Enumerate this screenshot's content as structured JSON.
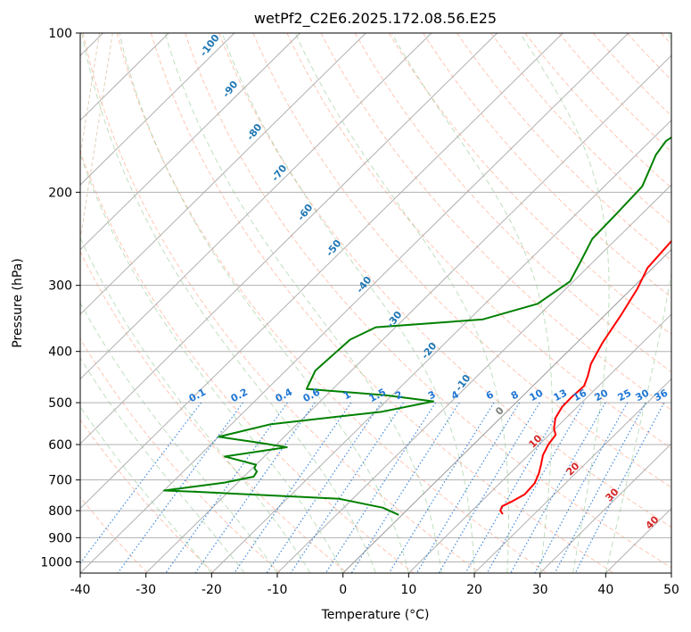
{
  "chart_data": {
    "type": "line",
    "title": "wetPf2_C2E6.2025.172.08.56.E25",
    "xlabel": "Temperature (°C)",
    "ylabel": "Pressure (hPa)",
    "xlim": [
      -40,
      50
    ],
    "ylim": [
      1050,
      100
    ],
    "y_scale": "log",
    "x_ticks": [
      "-40",
      "-30",
      "-20",
      "-10",
      "0",
      "10",
      "20",
      "30",
      "40",
      "50"
    ],
    "y_ticks": [
      {
        "p": 100,
        "label": "100"
      },
      {
        "p": 200,
        "label": "200"
      },
      {
        "p": 300,
        "label": "300"
      },
      {
        "p": 400,
        "label": "400"
      },
      {
        "p": 500,
        "label": "500"
      },
      {
        "p": 600,
        "label": "600"
      },
      {
        "p": 700,
        "label": "700"
      },
      {
        "p": 800,
        "label": "800"
      },
      {
        "p": 900,
        "label": "900"
      },
      {
        "p": 1000,
        "label": "1000"
      }
    ],
    "grid": true,
    "colors": {
      "temperature": "#ff0000",
      "dewpoint": "#008000",
      "isotherm": "#b0b0b0",
      "dry_adiabat": "#ffa080",
      "moist_adiabat": "#80c080",
      "mixing_ratio": "#1f77d4",
      "potential_temp_label": "#1f77b4",
      "moist_label": "#d62728",
      "zero_line": "#808080",
      "tan_curve": "#c8a070"
    },
    "series": [
      {
        "key": "temperature",
        "points": [
          [
            15.2,
            812
          ],
          [
            14.3,
            800
          ],
          [
            13.9,
            785
          ],
          [
            14.6,
            770
          ],
          [
            15.5,
            745
          ],
          [
            15.3,
            710
          ],
          [
            14.4,
            680
          ],
          [
            13.4,
            655
          ],
          [
            12.2,
            628
          ],
          [
            11.4,
            600
          ],
          [
            11.0,
            575
          ],
          [
            9.8,
            560
          ],
          [
            8.4,
            535
          ],
          [
            7.7,
            510
          ],
          [
            7.6,
            490
          ],
          [
            7.8,
            465
          ],
          [
            6.8,
            445
          ],
          [
            5.4,
            422
          ],
          [
            3.9,
            385
          ],
          [
            2.4,
            340
          ],
          [
            0.9,
            305
          ],
          [
            -0.8,
            278
          ],
          [
            -1.3,
            248
          ],
          [
            -1.4,
            226
          ],
          [
            -0.6,
            212
          ],
          [
            0.6,
            200
          ],
          [
            3.5,
            183
          ],
          [
            6.6,
            167
          ],
          [
            9.2,
            150
          ],
          [
            11.3,
            135
          ],
          [
            13.0,
            120
          ],
          [
            14.6,
            110
          ],
          [
            16.0,
            103
          ],
          [
            16.5,
            100
          ]
        ]
      },
      {
        "key": "dewpoint",
        "points": [
          [
            -0.5,
            815
          ],
          [
            -4.0,
            790
          ],
          [
            -12.0,
            760
          ],
          [
            -35.0,
            737
          ],
          [
            -40.0,
            733
          ],
          [
            -37.0,
            724
          ],
          [
            -32.0,
            708
          ],
          [
            -28.5,
            690
          ],
          [
            -28.8,
            675
          ],
          [
            -29.7,
            665
          ],
          [
            -30.0,
            655
          ],
          [
            -36.0,
            632
          ],
          [
            -28.0,
            607
          ],
          [
            -33.0,
            595
          ],
          [
            -40.0,
            580
          ],
          [
            -34.0,
            549
          ],
          [
            -19.0,
            520
          ],
          [
            -12.8,
            497
          ],
          [
            -21.0,
            484
          ],
          [
            -34.0,
            471
          ],
          [
            -35.5,
            435
          ],
          [
            -35.0,
            380
          ],
          [
            -33.0,
            360
          ],
          [
            -18.0,
            348
          ],
          [
            -12.0,
            325
          ],
          [
            -10.5,
            295
          ],
          [
            -12.0,
            270
          ],
          [
            -13.7,
            245
          ],
          [
            -13.9,
            220
          ],
          [
            -14.2,
            195
          ],
          [
            -17.0,
            170
          ],
          [
            -17.6,
            160
          ],
          [
            -16.5,
            150
          ],
          [
            -13.2,
            138
          ],
          [
            -10.3,
            130
          ],
          [
            -8.0,
            125
          ],
          [
            -4.4,
            118
          ],
          [
            -3.2,
            112
          ],
          [
            -5.2,
            107
          ],
          [
            -6.2,
            104
          ],
          [
            -5.0,
            102
          ],
          [
            -3.8,
            100
          ]
        ]
      }
    ],
    "dry_adiabat_labels": [
      "-100",
      "-90",
      "-80",
      "-70",
      "-60",
      "-50",
      "-40",
      "-30",
      "-20",
      "-10"
    ],
    "mixing_ratio_labels": [
      "0.1",
      "0.2",
      "0.4",
      "0.6",
      "1",
      "1.5",
      "2",
      "3",
      "4",
      "6",
      "8",
      "10",
      "13",
      "16",
      "20",
      "25",
      "30",
      "36"
    ],
    "moist_adiabat_labels": [
      "0",
      "10",
      "20",
      "30",
      "40"
    ]
  }
}
